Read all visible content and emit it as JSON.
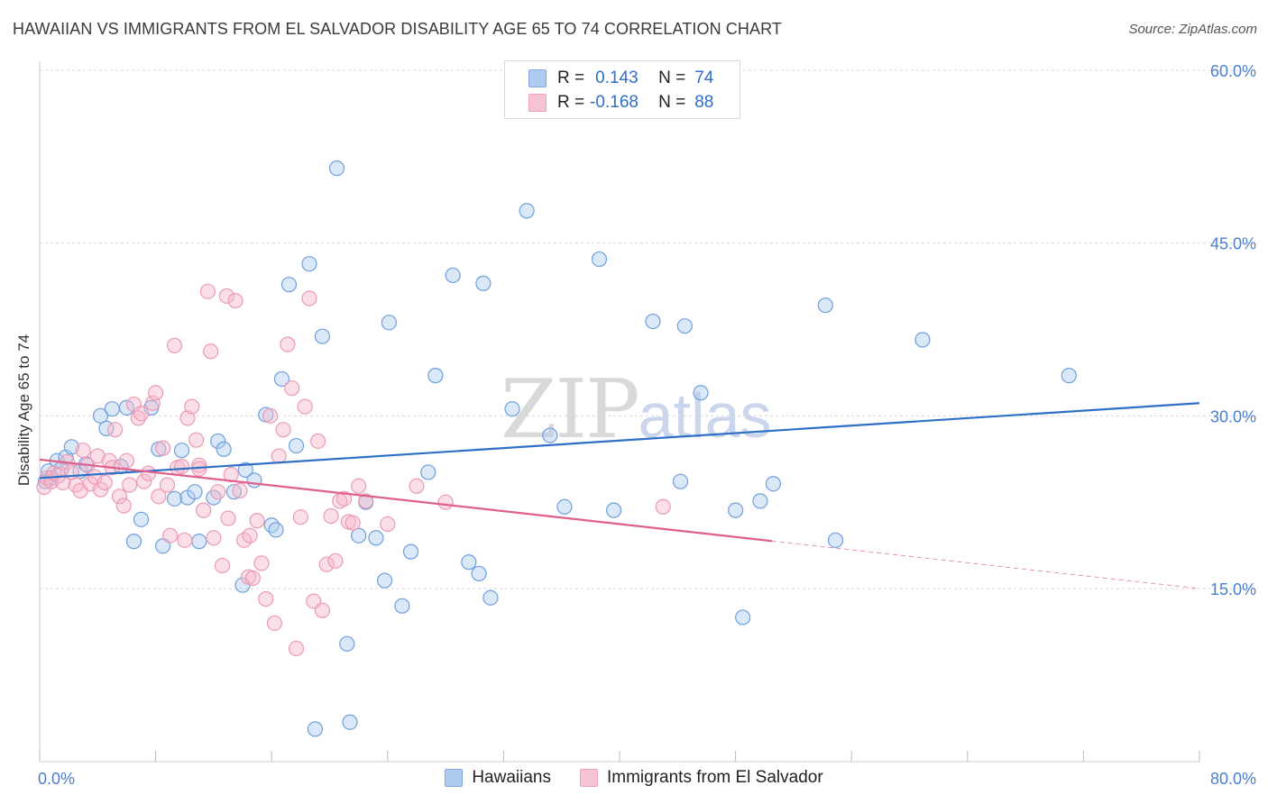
{
  "title": "HAWAIIAN VS IMMIGRANTS FROM EL SALVADOR DISABILITY AGE 65 TO 74 CORRELATION CHART",
  "source": "Source: ZipAtlas.com",
  "watermark": {
    "zip": "ZIP",
    "atlas": "atlas"
  },
  "colors": {
    "blue": "#2f6fc6",
    "blue_fill": "#aecbf0",
    "pink": "#e0608c",
    "pink_fill": "#f6b8cc",
    "tick_label": "#4a7fd0"
  },
  "legend": {
    "rows": [
      {
        "r_label": "R =",
        "r_value": "0.143",
        "n_label": "N =",
        "n_value": "74"
      },
      {
        "r_label": "R =",
        "r_value": "-0.168",
        "n_label": "N =",
        "n_value": "88"
      }
    ]
  },
  "bottom_legend": [
    "Hawaiians",
    "Immigrants from El Salvador"
  ],
  "chart_data": {
    "type": "scatter",
    "title": "HAWAIIAN VS IMMIGRANTS FROM EL SALVADOR DISABILITY AGE 65 TO 74 CORRELATION CHART",
    "xlabel": "",
    "ylabel": "Disability Age 65 to 74",
    "xlim": [
      0,
      80
    ],
    "ylim": [
      0,
      63
    ],
    "x_tick_labels": [
      "0.0%",
      "80.0%"
    ],
    "y_ticks": [
      15,
      30,
      45,
      60
    ],
    "y_tick_labels": [
      "15.0%",
      "30.0%",
      "45.0%",
      "60.0%"
    ],
    "grid": true,
    "series": [
      {
        "name": "Hawaiians",
        "color": "#2f6fc6",
        "trend": {
          "x": [
            0,
            80
          ],
          "y": [
            24.6,
            31.1
          ],
          "dashed_from": null
        },
        "points": [
          [
            0.4,
            24.3
          ],
          [
            0.6,
            25.2
          ],
          [
            0.8,
            24.6
          ],
          [
            1.2,
            26.1
          ],
          [
            1.5,
            25.4
          ],
          [
            1.8,
            26.4
          ],
          [
            2.2,
            27.3
          ],
          [
            2.8,
            25.2
          ],
          [
            3.2,
            25.8
          ],
          [
            4.2,
            30.0
          ],
          [
            4.6,
            28.9
          ],
          [
            5.0,
            30.6
          ],
          [
            5.6,
            25.6
          ],
          [
            6.0,
            30.7
          ],
          [
            6.5,
            19.1
          ],
          [
            7.0,
            21.0
          ],
          [
            7.7,
            30.7
          ],
          [
            8.2,
            27.1
          ],
          [
            8.5,
            18.7
          ],
          [
            9.3,
            22.8
          ],
          [
            9.8,
            27.0
          ],
          [
            10.2,
            22.9
          ],
          [
            10.7,
            23.4
          ],
          [
            11.0,
            19.1
          ],
          [
            12.0,
            22.9
          ],
          [
            12.3,
            27.8
          ],
          [
            12.7,
            27.1
          ],
          [
            13.4,
            23.4
          ],
          [
            14.0,
            15.3
          ],
          [
            14.2,
            25.3
          ],
          [
            14.8,
            24.4
          ],
          [
            15.6,
            30.1
          ],
          [
            16.0,
            20.5
          ],
          [
            16.3,
            20.1
          ],
          [
            16.7,
            33.2
          ],
          [
            17.2,
            41.4
          ],
          [
            17.7,
            27.4
          ],
          [
            18.6,
            43.2
          ],
          [
            19.5,
            36.9
          ],
          [
            20.5,
            51.5
          ],
          [
            21.2,
            10.2
          ],
          [
            22.0,
            19.6
          ],
          [
            22.5,
            22.5
          ],
          [
            23.2,
            19.4
          ],
          [
            23.8,
            15.7
          ],
          [
            24.1,
            38.1
          ],
          [
            25.0,
            13.5
          ],
          [
            25.6,
            18.2
          ],
          [
            26.8,
            25.1
          ],
          [
            27.3,
            33.5
          ],
          [
            28.5,
            42.2
          ],
          [
            29.6,
            17.3
          ],
          [
            30.3,
            16.3
          ],
          [
            30.6,
            41.5
          ],
          [
            31.1,
            14.2
          ],
          [
            32.6,
            30.6
          ],
          [
            33.6,
            47.8
          ],
          [
            35.2,
            28.3
          ],
          [
            36.2,
            22.1
          ],
          [
            38.6,
            43.6
          ],
          [
            39.6,
            21.8
          ],
          [
            42.3,
            38.2
          ],
          [
            44.2,
            24.3
          ],
          [
            44.5,
            37.8
          ],
          [
            45.6,
            32.0
          ],
          [
            48.0,
            21.8
          ],
          [
            48.5,
            12.5
          ],
          [
            49.7,
            22.6
          ],
          [
            50.6,
            24.1
          ],
          [
            54.2,
            39.6
          ],
          [
            54.9,
            19.2
          ],
          [
            60.9,
            36.6
          ],
          [
            71.0,
            33.5
          ],
          [
            21.4,
            3.4
          ],
          [
            19.0,
            2.8
          ]
        ]
      },
      {
        "name": "Immigrants from El Salvador",
        "color": "#e0608c",
        "trend": {
          "x": [
            0,
            80
          ],
          "y": [
            26.2,
            15.0
          ],
          "dashed_from": 50.5
        },
        "points": [
          [
            0.3,
            23.8
          ],
          [
            0.5,
            24.6
          ],
          [
            0.8,
            24.3
          ],
          [
            1.0,
            25.0
          ],
          [
            1.3,
            24.8
          ],
          [
            1.6,
            24.2
          ],
          [
            1.9,
            26.0
          ],
          [
            2.2,
            25.1
          ],
          [
            2.5,
            24.0
          ],
          [
            2.8,
            23.5
          ],
          [
            3.0,
            27.0
          ],
          [
            3.3,
            25.7
          ],
          [
            3.5,
            24.1
          ],
          [
            3.8,
            24.7
          ],
          [
            4.0,
            26.5
          ],
          [
            4.2,
            23.6
          ],
          [
            4.5,
            24.2
          ],
          [
            4.8,
            26.1
          ],
          [
            5.0,
            25.5
          ],
          [
            5.2,
            28.8
          ],
          [
            5.5,
            23.0
          ],
          [
            5.8,
            22.2
          ],
          [
            6.0,
            26.1
          ],
          [
            6.2,
            24.0
          ],
          [
            6.5,
            31.0
          ],
          [
            6.8,
            29.8
          ],
          [
            7.0,
            30.2
          ],
          [
            7.2,
            24.3
          ],
          [
            7.5,
            25.0
          ],
          [
            7.8,
            31.1
          ],
          [
            8.0,
            32.0
          ],
          [
            8.2,
            23.0
          ],
          [
            8.5,
            27.2
          ],
          [
            8.8,
            24.0
          ],
          [
            9.0,
            19.6
          ],
          [
            9.3,
            36.1
          ],
          [
            9.5,
            25.5
          ],
          [
            9.8,
            25.6
          ],
          [
            10.0,
            19.2
          ],
          [
            10.2,
            29.8
          ],
          [
            10.5,
            30.8
          ],
          [
            10.8,
            27.9
          ],
          [
            11.0,
            25.7
          ],
          [
            11.3,
            21.8
          ],
          [
            11.6,
            40.8
          ],
          [
            11.8,
            35.6
          ],
          [
            12.0,
            19.4
          ],
          [
            12.3,
            23.4
          ],
          [
            12.6,
            17.0
          ],
          [
            12.9,
            40.4
          ],
          [
            13.2,
            24.9
          ],
          [
            13.5,
            40.0
          ],
          [
            13.8,
            23.5
          ],
          [
            14.1,
            19.2
          ],
          [
            14.4,
            16.0
          ],
          [
            14.7,
            15.9
          ],
          [
            15.0,
            20.9
          ],
          [
            15.3,
            17.2
          ],
          [
            15.6,
            14.1
          ],
          [
            15.9,
            30.0
          ],
          [
            16.2,
            12.0
          ],
          [
            16.5,
            26.5
          ],
          [
            16.8,
            28.8
          ],
          [
            17.1,
            36.2
          ],
          [
            17.4,
            32.4
          ],
          [
            17.7,
            9.8
          ],
          [
            18.0,
            21.2
          ],
          [
            18.3,
            30.8
          ],
          [
            18.6,
            40.2
          ],
          [
            18.9,
            13.9
          ],
          [
            19.2,
            27.8
          ],
          [
            19.5,
            13.1
          ],
          [
            19.8,
            17.1
          ],
          [
            20.1,
            21.3
          ],
          [
            20.4,
            17.4
          ],
          [
            20.7,
            22.6
          ],
          [
            21.0,
            22.8
          ],
          [
            21.3,
            20.8
          ],
          [
            21.6,
            20.7
          ],
          [
            22.0,
            23.9
          ],
          [
            22.5,
            22.6
          ],
          [
            24.0,
            20.6
          ],
          [
            26.0,
            23.9
          ],
          [
            28.0,
            22.5
          ],
          [
            43.0,
            22.1
          ],
          [
            11.0,
            25.4
          ],
          [
            13.0,
            21.1
          ],
          [
            14.5,
            19.6
          ]
        ]
      }
    ]
  }
}
